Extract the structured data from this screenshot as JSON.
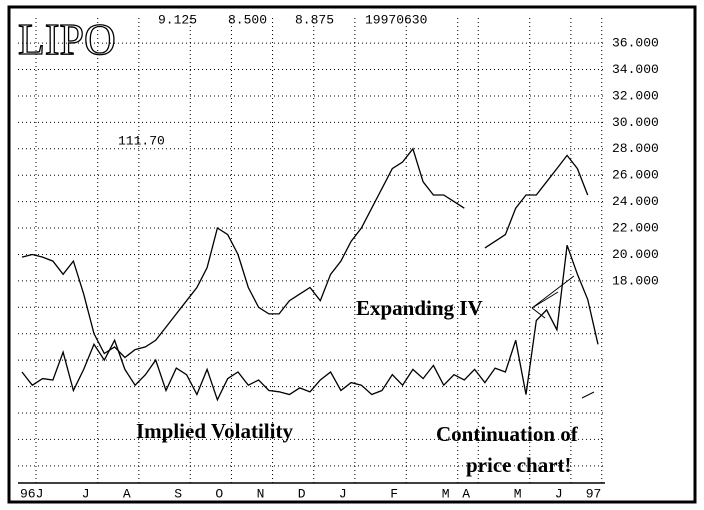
{
  "chart_data": {
    "type": "line",
    "title": "LIPO",
    "header_values": [
      "9.125",
      "8.500",
      "8.875",
      "19970630"
    ],
    "annotations": [
      "111.70",
      "Expanding IV",
      "Implied Volatility",
      "Continuation of",
      "price chart!"
    ],
    "categories": [
      "96J",
      null,
      null,
      null,
      null,
      null,
      "J",
      null,
      null,
      null,
      "A",
      null,
      null,
      null,
      null,
      "S",
      null,
      null,
      null,
      "O",
      null,
      null,
      null,
      "N",
      null,
      null,
      null,
      "D",
      null,
      null,
      null,
      "J",
      null,
      null,
      null,
      null,
      "F",
      null,
      null,
      null,
      null,
      "M",
      null,
      "A",
      null,
      null,
      null,
      null,
      "M",
      null,
      null,
      null,
      "J",
      null,
      null,
      "97",
      null
    ],
    "series": [
      {
        "name": "Price",
        "color": "#000000",
        "values": [
          19.8,
          20,
          19.8,
          19.5,
          18.5,
          19.5,
          17,
          14,
          12.5,
          13,
          12.2,
          12.8,
          13,
          13.5,
          14.5,
          15.5,
          16.5,
          17.5,
          19,
          22,
          21.5,
          20,
          17.5,
          16,
          15.5,
          15.5,
          16.5,
          17,
          17.5,
          16.5,
          18.5,
          19.5,
          21,
          22,
          23.5,
          25,
          26.5,
          27,
          28,
          25.5,
          24.5,
          24.5,
          24,
          23.5,
          null,
          20.5,
          21,
          21.5,
          23.5,
          24.5,
          24.5,
          25.5,
          26.5,
          27.5,
          26.5,
          24.5,
          null
        ]
      },
      {
        "name": "Implied Volatility",
        "color": "#000000",
        "values": [
          11.1,
          10.1,
          10.6,
          10.5,
          12.6,
          9.7,
          11.3,
          13.2,
          12.0,
          13.5,
          11.3,
          10.1,
          10.9,
          12.0,
          9.7,
          11.4,
          10.9,
          9.4,
          11.3,
          9.0,
          10.6,
          11.1,
          10.1,
          10.5,
          9.7,
          9.6,
          9.4,
          9.9,
          9.6,
          10.5,
          11.1,
          9.7,
          10.3,
          10.1,
          9.4,
          9.7,
          10.9,
          10.1,
          11.3,
          10.6,
          11.6,
          10.1,
          10.9,
          10.5,
          11.3,
          10.3,
          11.4,
          11.1,
          13.5,
          9.4,
          15.0,
          15.8,
          14.3,
          20.7,
          18.5,
          16.6,
          13.2
        ]
      }
    ],
    "ylim": [
      2.7,
      37.9
    ],
    "yticks": [
      {
        "value": 18,
        "label": "18.000"
      },
      {
        "value": 20,
        "label": "20.000"
      },
      {
        "value": 22,
        "label": "22.000"
      },
      {
        "value": 24,
        "label": "24.000"
      },
      {
        "value": 26,
        "label": "26.000"
      },
      {
        "value": 28,
        "label": "28.000"
      },
      {
        "value": 30,
        "label": "30.000"
      },
      {
        "value": 32,
        "label": "32.000"
      },
      {
        "value": 34,
        "label": "34.000"
      },
      {
        "value": 36,
        "label": "36.000"
      }
    ],
    "grid": true
  }
}
